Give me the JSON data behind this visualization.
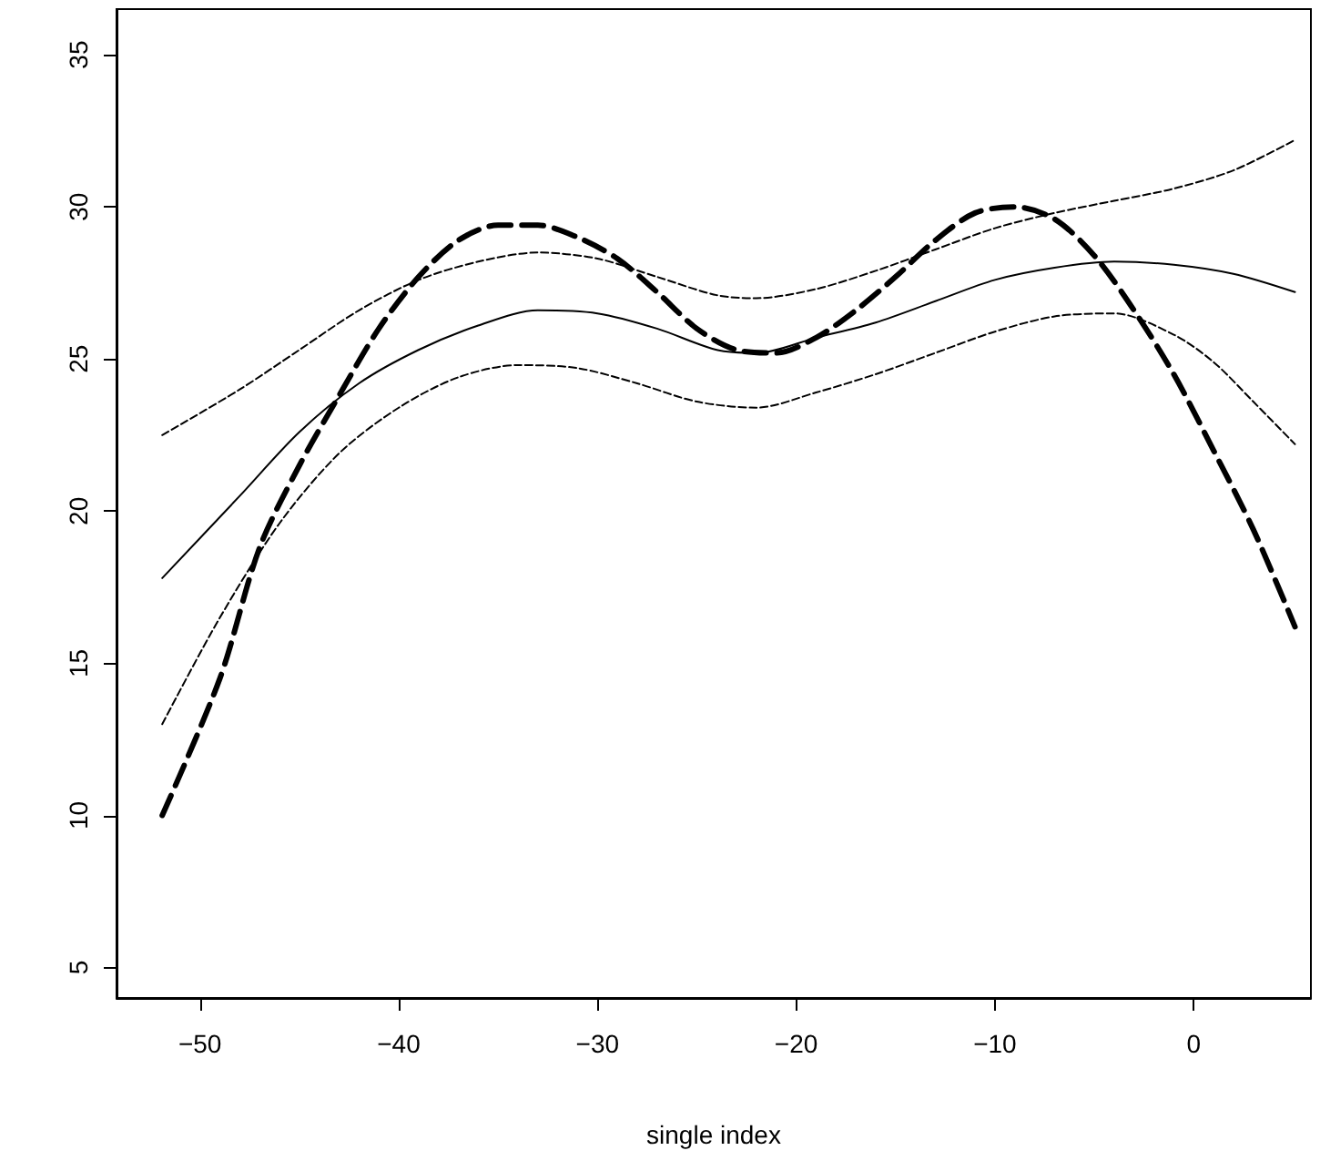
{
  "chart_data": {
    "type": "line",
    "xlabel": "single index",
    "xlim": [
      -54.2,
      5.9
    ],
    "xticks": [
      -50,
      -40,
      -30,
      -20,
      -10,
      0
    ],
    "ylim": [
      4,
      36.5
    ],
    "yticks": [
      5,
      10,
      15,
      20,
      25,
      30,
      35
    ],
    "marker": "none",
    "series": [
      {
        "color": "#000000",
        "line_style": "solid",
        "x": [
          -51.9,
          -48,
          -45,
          -42,
          -39,
          -36,
          -33,
          -30,
          -27,
          -24,
          -22,
          -19,
          -16,
          -13,
          -10,
          -7,
          -4,
          -1,
          2,
          5.1
        ],
        "values": [
          17.8,
          20.5,
          22.6,
          24.2,
          25.3,
          26.1,
          26.6,
          26.5,
          26.0,
          25.3,
          25.2,
          25.7,
          26.2,
          26.9,
          27.6,
          28.0,
          28.2,
          28.1,
          27.8,
          27.2
        ]
      },
      {
        "color": "#000000",
        "line_style": "dashed",
        "x": [
          -51.9,
          -48,
          -45,
          -42,
          -39,
          -36,
          -33,
          -30,
          -27,
          -24,
          -22,
          -19,
          -16,
          -13,
          -10,
          -7,
          -4,
          -1,
          2,
          5.1
        ],
        "values": [
          22.5,
          24.0,
          25.3,
          26.6,
          27.6,
          28.2,
          28.5,
          28.3,
          27.7,
          27.1,
          27.0,
          27.3,
          27.9,
          28.6,
          29.3,
          29.8,
          30.2,
          30.6,
          31.2,
          32.2
        ]
      },
      {
        "color": "#000000",
        "line_style": "dashed",
        "x": [
          -51.9,
          -49,
          -46,
          -43,
          -40,
          -37,
          -34,
          -31,
          -28,
          -25,
          -22,
          -19,
          -16,
          -13,
          -10,
          -7,
          -4,
          -1,
          1,
          3,
          5.1
        ],
        "values": [
          13.0,
          16.5,
          19.6,
          21.9,
          23.4,
          24.4,
          24.8,
          24.7,
          24.2,
          23.6,
          23.4,
          23.9,
          24.5,
          25.2,
          25.9,
          26.4,
          26.5,
          25.8,
          24.9,
          23.6,
          22.2
        ]
      },
      {
        "color": "#000000",
        "line_style": "dashed",
        "x": [
          -51.9,
          -49,
          -47,
          -45,
          -43,
          -41,
          -39,
          -37,
          -35,
          -33,
          -31,
          -29,
          -27,
          -25,
          -23,
          -21,
          -19,
          -17,
          -15,
          -13,
          -11,
          -9,
          -7,
          -5,
          -3,
          -1,
          1,
          3,
          5.1
        ],
        "values": [
          10.0,
          14.5,
          18.8,
          21.5,
          23.8,
          26.0,
          27.7,
          28.9,
          29.4,
          29.4,
          29.0,
          28.3,
          27.2,
          26.0,
          25.3,
          25.2,
          25.7,
          26.6,
          27.7,
          28.9,
          29.8,
          30.0,
          29.6,
          28.4,
          26.6,
          24.5,
          22.0,
          19.4,
          16.2
        ]
      }
    ]
  }
}
